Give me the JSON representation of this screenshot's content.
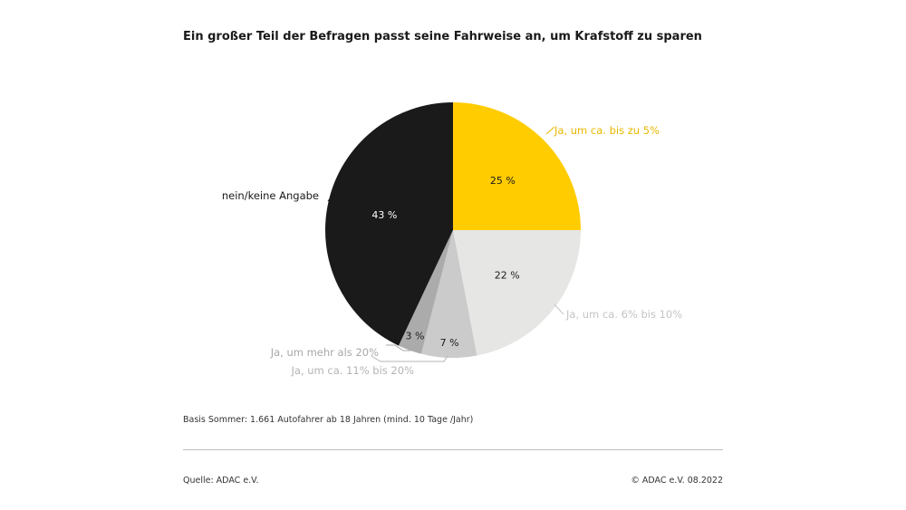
{
  "chart_data": {
    "type": "pie",
    "title": "Ein großer Teil der Befragen passt seine Fahrweise an, um Krafstoff zu sparen",
    "slices": [
      {
        "label": "Ja, um ca. bis zu 5%",
        "value": 25,
        "value_label": "25 %",
        "color": "#ffcc00",
        "label_color": "#e8b800",
        "text_color": "#1a1a1a"
      },
      {
        "label": "Ja, um ca. 6% bis 10%",
        "value": 22,
        "value_label": "22 %",
        "color": "#e6e6e5",
        "label_color": "#c4c4c4",
        "text_color": "#1a1a1a"
      },
      {
        "label": "Ja, um ca. 11% bis 20%",
        "value": 7,
        "value_label": "7 %",
        "color": "#cbcbcb",
        "label_color": "#b4b4b4",
        "text_color": "#1a1a1a"
      },
      {
        "label": "Ja, um mehr als 20%",
        "value": 3,
        "value_label": "3 %",
        "color": "#ababab",
        "label_color": "#a8a8a8",
        "text_color": "#1a1a1a"
      },
      {
        "label": "nein/keine Angabe",
        "value": 43,
        "value_label": "43 %",
        "color": "#1a1a1a",
        "label_color": "#1a1a1a",
        "text_color": "#ffffff"
      }
    ]
  },
  "footer": {
    "basis": "Basis Sommer: 1.661 Autofahrer ab 18 Jahren (mind. 10 Tage /Jahr)",
    "source": "Quelle: ADAC e.V.",
    "copyright": "© ADAC e.V. 08.2022"
  }
}
